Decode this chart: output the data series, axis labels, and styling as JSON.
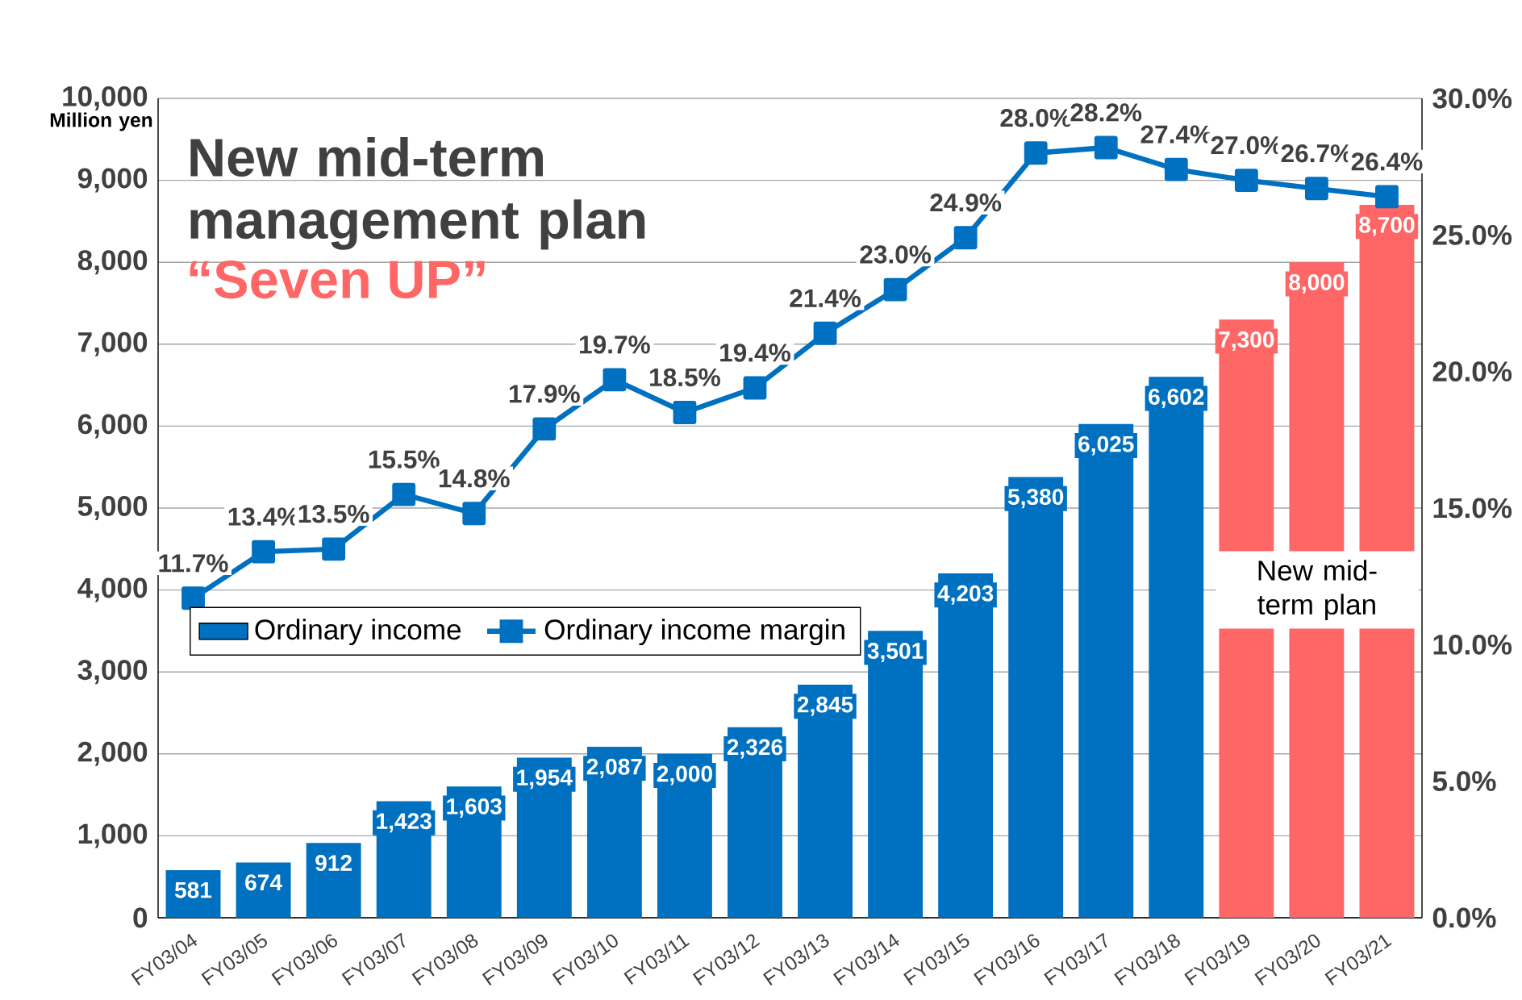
{
  "chart_data": {
    "type": "bar",
    "title": "New mid-term management plan",
    "subtitle": "“Seven  UP”",
    "ylabel": "Million yen",
    "categories": [
      "FY03/04",
      "FY03/05",
      "FY03/06",
      "FY03/07",
      "FY03/08",
      "FY03/09",
      "FY03/10",
      "FY03/11",
      "FY03/12",
      "FY03/13",
      "FY03/14",
      "FY03/15",
      "FY03/16",
      "FY03/17",
      "FY03/18",
      "FY03/19",
      "FY03/20",
      "FY03/21"
    ],
    "series": [
      {
        "name": "Ordinary income",
        "colors": [
          "#0070c0",
          "#0070c0",
          "#0070c0",
          "#0070c0",
          "#0070c0",
          "#0070c0",
          "#0070c0",
          "#0070c0",
          "#0070c0",
          "#0070c0",
          "#0070c0",
          "#0070c0",
          "#0070c0",
          "#0070c0",
          "#0070c0",
          "#ff6666",
          "#ff6666",
          "#ff6666"
        ],
        "values": [
          581,
          674,
          912,
          1423,
          1603,
          1954,
          2087,
          2000,
          2326,
          2845,
          3501,
          4203,
          5380,
          6025,
          6602,
          7300,
          8000,
          8700
        ],
        "value_labels": [
          "581",
          "674",
          "912",
          "1,423",
          "1,603",
          "1,954",
          "2,087",
          "2,000",
          "2,326",
          "2,845",
          "3,501",
          "4,203",
          "5,380",
          "6,025",
          "6,602",
          "7,300",
          "8,000",
          "8,700"
        ]
      },
      {
        "name": "Ordinary income margin",
        "type": "line",
        "axis": "y2",
        "color": "#0070c0",
        "values": [
          11.7,
          13.4,
          13.5,
          15.5,
          14.8,
          17.9,
          19.7,
          18.5,
          19.4,
          21.4,
          23.0,
          24.9,
          28.0,
          28.2,
          27.4,
          27.0,
          26.7,
          26.4
        ],
        "value_labels": [
          "11.7%",
          "13.4%",
          "13.5%",
          "15.5%",
          "14.8%",
          "17.9%",
          "19.7%",
          "18.5%",
          "19.4%",
          "21.4%",
          "23.0%",
          "24.9%",
          "28.0%",
          "28.2%",
          "27.4%",
          "27.0%",
          "26.7%",
          "26.4%"
        ]
      }
    ],
    "ylim": [
      0,
      10000
    ],
    "yticks": [
      {
        "value": 0,
        "label": "0"
      },
      {
        "value": 1000,
        "label": "1,000"
      },
      {
        "value": 2000,
        "label": "2,000"
      },
      {
        "value": 3000,
        "label": "3,000"
      },
      {
        "value": 4000,
        "label": "4,000"
      },
      {
        "value": 5000,
        "label": "5,000"
      },
      {
        "value": 6000,
        "label": "6,000"
      },
      {
        "value": 7000,
        "label": "7,000"
      },
      {
        "value": 8000,
        "label": "8,000"
      },
      {
        "value": 9000,
        "label": "9,000"
      },
      {
        "value": 10000,
        "label": "10,000"
      }
    ],
    "y2lim": [
      0,
      30
    ],
    "y2ticks": [
      {
        "value": 0,
        "label": "0.0%"
      },
      {
        "value": 5,
        "label": "5.0%"
      },
      {
        "value": 10,
        "label": "10.0%"
      },
      {
        "value": 15,
        "label": "15.0%"
      },
      {
        "value": 20,
        "label": "20.0%"
      },
      {
        "value": 25,
        "label": "25.0%"
      },
      {
        "value": 30,
        "label": "30.0%"
      }
    ],
    "annotations": [
      "New mid-term plan"
    ],
    "grid": "y",
    "legend": "left",
    "marker": "square"
  }
}
